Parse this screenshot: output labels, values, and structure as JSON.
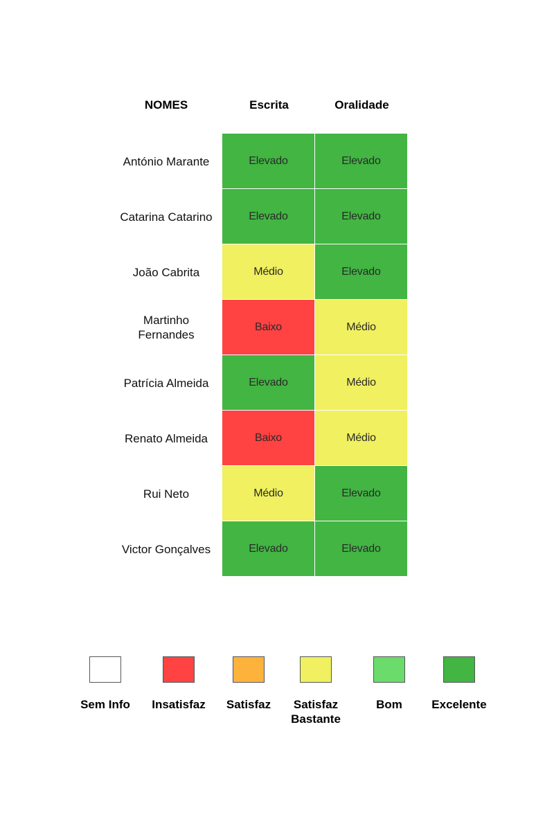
{
  "colors": {
    "excelente": "#42b543",
    "satisfaz_bastante": "#f0f060",
    "insatisfaz": "#ff4242",
    "satisfaz": "#fdb23c",
    "bom": "#6bdb6b",
    "sem_info": "#ffffff"
  },
  "header": {
    "names": "NOMES",
    "col1": "Escrita",
    "col2": "Oralidade"
  },
  "rows": [
    {
      "name": "António Marante",
      "escrita": "Elevado",
      "oralidade": "Elevado",
      "escrita_color": "#42b543",
      "oralidade_color": "#42b543"
    },
    {
      "name": "Catarina Catarino",
      "escrita": "Elevado",
      "oralidade": "Elevado",
      "escrita_color": "#42b543",
      "oralidade_color": "#42b543"
    },
    {
      "name": "João Cabrita",
      "escrita": "Médio",
      "oralidade": "Elevado",
      "escrita_color": "#f0f060",
      "oralidade_color": "#42b543"
    },
    {
      "name": "Martinho Fernandes",
      "escrita": "Baixo",
      "oralidade": "Médio",
      "escrita_color": "#ff4242",
      "oralidade_color": "#f0f060"
    },
    {
      "name": "Patrícia Almeida",
      "escrita": "Elevado",
      "oralidade": "Médio",
      "escrita_color": "#42b543",
      "oralidade_color": "#f0f060"
    },
    {
      "name": "Renato Almeida",
      "escrita": "Baixo",
      "oralidade": "Médio",
      "escrita_color": "#ff4242",
      "oralidade_color": "#f0f060"
    },
    {
      "name": "Rui Neto",
      "escrita": "Médio",
      "oralidade": "Elevado",
      "escrita_color": "#f0f060",
      "oralidade_color": "#42b543"
    },
    {
      "name": "Victor Gonçalves",
      "escrita": "Elevado",
      "oralidade": "Elevado",
      "escrita_color": "#42b543",
      "oralidade_color": "#42b543"
    }
  ],
  "legend": [
    {
      "label": "Sem Info",
      "color": "#ffffff"
    },
    {
      "label": "Insatisfaz",
      "color": "#ff4242"
    },
    {
      "label": "Satisfaz",
      "color": "#fdb23c"
    },
    {
      "label": "Satisfaz Bastante",
      "color": "#f0f060"
    },
    {
      "label": "Bom",
      "color": "#6bdb6b"
    },
    {
      "label": "Excelente",
      "color": "#42b543"
    }
  ]
}
